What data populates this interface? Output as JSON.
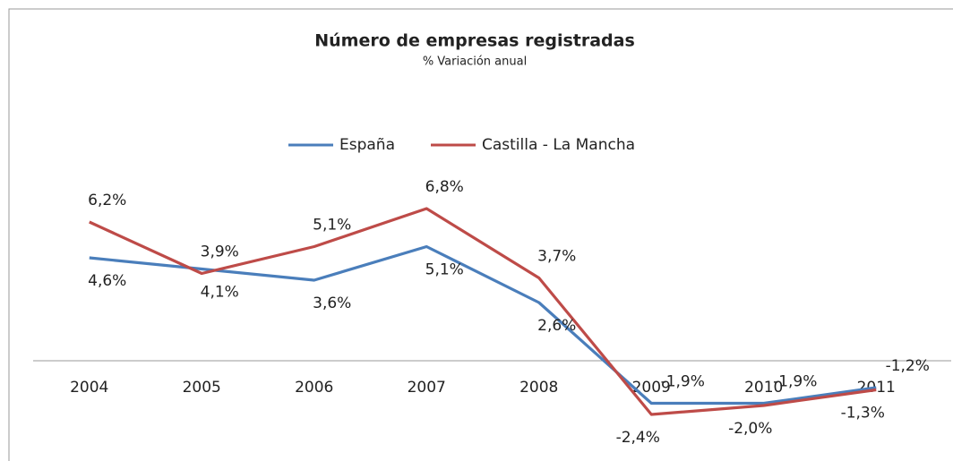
{
  "chart_data": {
    "type": "line",
    "title": "Número de empresas registradas",
    "subtitle": "% Variación anual",
    "categories": [
      "2004",
      "2005",
      "2006",
      "2007",
      "2008",
      "2009",
      "2010",
      "2011"
    ],
    "series": [
      {
        "name": "España",
        "color": "#4a7ebb",
        "values": [
          4.6,
          4.1,
          3.6,
          5.1,
          2.6,
          -1.9,
          -1.9,
          -1.2
        ],
        "value_labels": [
          "4,6%",
          "4,1%",
          "3,6%",
          "5,1%",
          "2,6%",
          "-1,9%",
          "-1,9%",
          "-1,2%"
        ]
      },
      {
        "name": "Castilla - La Mancha",
        "color": "#be4b48",
        "values": [
          6.2,
          3.9,
          5.1,
          6.8,
          3.7,
          -2.4,
          -2.0,
          -1.3
        ],
        "value_labels": [
          "6,2%",
          "3,9%",
          "5,1%",
          "6,8%",
          "3,7%",
          "-2,4%",
          "-2,0%",
          "-1,3%"
        ]
      }
    ],
    "ylim": [
      -3,
      8
    ],
    "legend": "top"
  }
}
